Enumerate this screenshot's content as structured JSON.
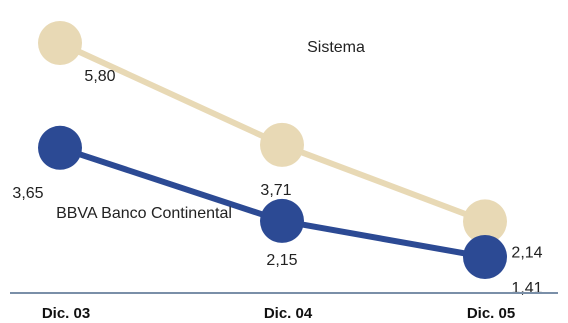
{
  "chart_data": {
    "type": "line",
    "categories": [
      "Dic.  03",
      "Dic.  04",
      "Dic.  05"
    ],
    "series": [
      {
        "name": "Sistema",
        "values": [
          5.8,
          3.71,
          2.14
        ],
        "labels": [
          "5,80",
          "3,71",
          "2,14"
        ],
        "color": "#e8d9b5"
      },
      {
        "name": "BBVA Banco Continental",
        "values": [
          3.65,
          2.15,
          1.41
        ],
        "labels": [
          "3,65",
          "2,15",
          "1,41"
        ],
        "color": "#2c4a94"
      }
    ],
    "title": "",
    "xlabel": "",
    "ylabel": "",
    "axis_color": "#7a8fa8",
    "grid": false,
    "legend": "inline"
  }
}
